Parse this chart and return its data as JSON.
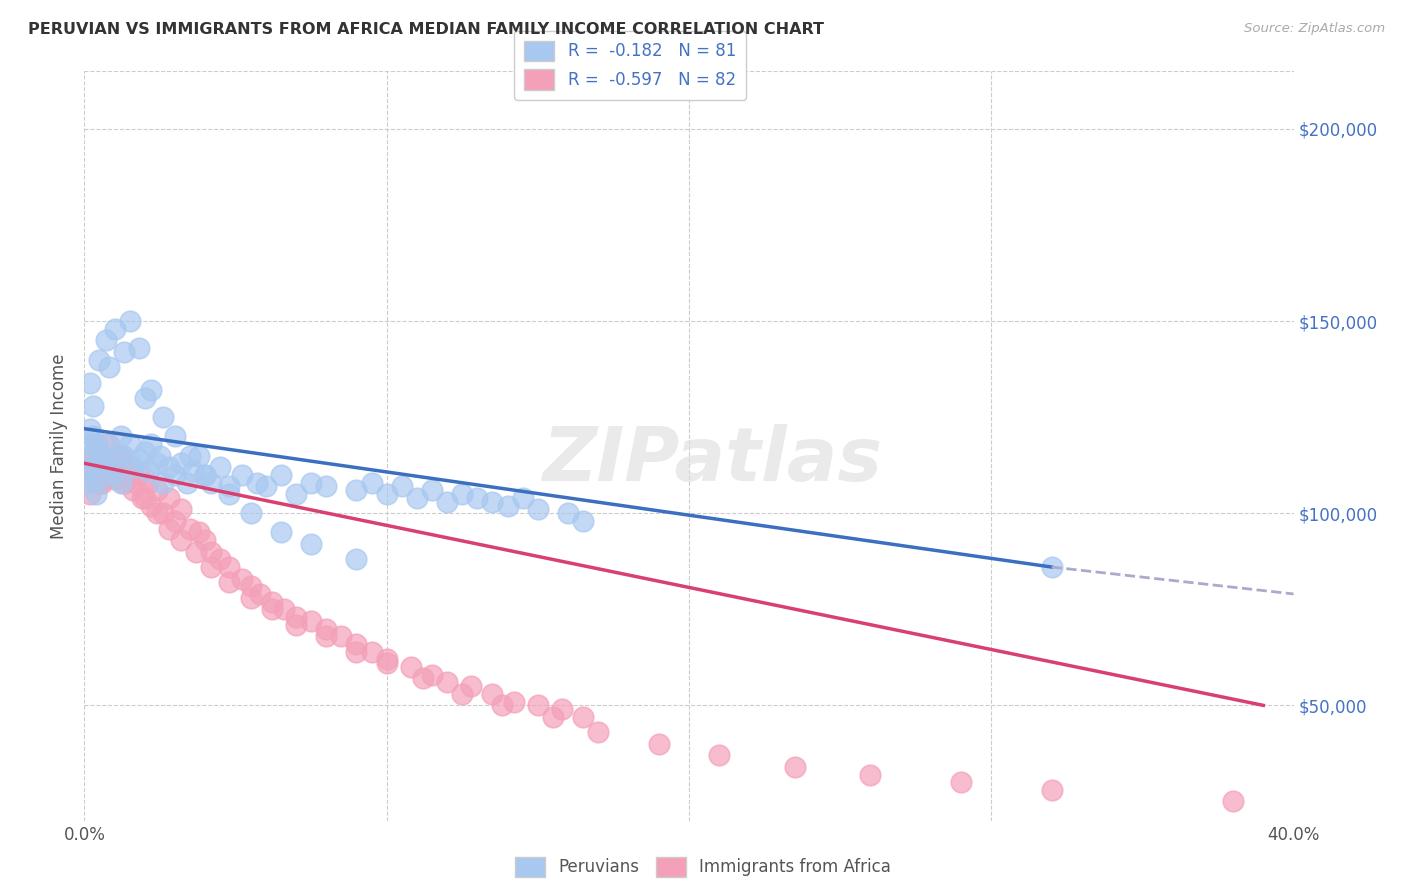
{
  "title": "PERUVIAN VS IMMIGRANTS FROM AFRICA MEDIAN FAMILY INCOME CORRELATION CHART",
  "source": "Source: ZipAtlas.com",
  "ylabel": "Median Family Income",
  "xlim": [
    0.0,
    0.4
  ],
  "ylim": [
    20000,
    215000
  ],
  "legend_R1": "R =  -0.182",
  "legend_N1": "N = 81",
  "legend_R2": "R =  -0.597",
  "legend_N2": "N = 82",
  "color_blue": "#A8C8F0",
  "color_pink": "#F4A0B8",
  "color_blue_line": "#3B6FBF",
  "color_pink_line": "#D94070",
  "color_blue_dark": "#4472C4",
  "watermark": "ZIPatlas",
  "blue_line_x0": 0.0,
  "blue_line_y0": 122000,
  "blue_line_x1": 0.32,
  "blue_line_y1": 86000,
  "blue_line_dash_x0": 0.32,
  "blue_line_dash_y0": 86000,
  "blue_line_dash_x1": 0.4,
  "blue_line_dash_y1": 79000,
  "pink_line_x0": 0.0,
  "pink_line_y0": 113000,
  "pink_line_x1": 0.39,
  "pink_line_y1": 50000,
  "peruvian_x": [
    0.001,
    0.001,
    0.002,
    0.002,
    0.002,
    0.003,
    0.003,
    0.004,
    0.004,
    0.005,
    0.005,
    0.006,
    0.007,
    0.008,
    0.009,
    0.01,
    0.012,
    0.012,
    0.013,
    0.015,
    0.016,
    0.018,
    0.02,
    0.021,
    0.022,
    0.024,
    0.025,
    0.026,
    0.028,
    0.03,
    0.032,
    0.034,
    0.036,
    0.038,
    0.04,
    0.042,
    0.045,
    0.048,
    0.052,
    0.057,
    0.06,
    0.065,
    0.07,
    0.075,
    0.08,
    0.09,
    0.095,
    0.1,
    0.105,
    0.11,
    0.115,
    0.12,
    0.125,
    0.13,
    0.135,
    0.14,
    0.145,
    0.15,
    0.16,
    0.165,
    0.002,
    0.003,
    0.005,
    0.007,
    0.008,
    0.01,
    0.013,
    0.015,
    0.018,
    0.02,
    0.022,
    0.026,
    0.03,
    0.035,
    0.04,
    0.048,
    0.055,
    0.065,
    0.075,
    0.09,
    0.32
  ],
  "peruvian_y": [
    118000,
    110000,
    122000,
    115000,
    108000,
    120000,
    112000,
    118000,
    105000,
    116000,
    109000,
    114000,
    118000,
    112000,
    110000,
    115000,
    120000,
    108000,
    115000,
    118000,
    112000,
    114000,
    116000,
    111000,
    118000,
    113000,
    115000,
    108000,
    112000,
    110000,
    113000,
    108000,
    111000,
    115000,
    110000,
    108000,
    112000,
    107000,
    110000,
    108000,
    107000,
    110000,
    105000,
    108000,
    107000,
    106000,
    108000,
    105000,
    107000,
    104000,
    106000,
    103000,
    105000,
    104000,
    103000,
    102000,
    104000,
    101000,
    100000,
    98000,
    134000,
    128000,
    140000,
    145000,
    138000,
    148000,
    142000,
    150000,
    143000,
    130000,
    132000,
    125000,
    120000,
    115000,
    110000,
    105000,
    100000,
    95000,
    92000,
    88000,
    86000
  ],
  "africa_x": [
    0.001,
    0.002,
    0.003,
    0.004,
    0.005,
    0.006,
    0.007,
    0.008,
    0.009,
    0.01,
    0.012,
    0.013,
    0.015,
    0.016,
    0.018,
    0.019,
    0.021,
    0.022,
    0.024,
    0.026,
    0.028,
    0.03,
    0.032,
    0.035,
    0.038,
    0.04,
    0.042,
    0.045,
    0.048,
    0.052,
    0.055,
    0.058,
    0.062,
    0.066,
    0.07,
    0.075,
    0.08,
    0.085,
    0.09,
    0.095,
    0.1,
    0.108,
    0.115,
    0.12,
    0.128,
    0.135,
    0.142,
    0.15,
    0.158,
    0.165,
    0.002,
    0.004,
    0.006,
    0.008,
    0.011,
    0.014,
    0.017,
    0.02,
    0.024,
    0.028,
    0.032,
    0.037,
    0.042,
    0.048,
    0.055,
    0.062,
    0.07,
    0.08,
    0.09,
    0.1,
    0.112,
    0.125,
    0.138,
    0.155,
    0.17,
    0.19,
    0.21,
    0.235,
    0.26,
    0.29,
    0.32,
    0.38
  ],
  "africa_y": [
    112000,
    115000,
    110000,
    118000,
    108000,
    114000,
    112000,
    110000,
    113000,
    109000,
    115000,
    108000,
    112000,
    106000,
    110000,
    104000,
    108000,
    102000,
    106000,
    100000,
    104000,
    98000,
    101000,
    96000,
    95000,
    93000,
    90000,
    88000,
    86000,
    83000,
    81000,
    79000,
    77000,
    75000,
    73000,
    72000,
    70000,
    68000,
    66000,
    64000,
    62000,
    60000,
    58000,
    56000,
    55000,
    53000,
    51000,
    50000,
    49000,
    47000,
    105000,
    112000,
    108000,
    118000,
    115000,
    110000,
    108000,
    104000,
    100000,
    96000,
    93000,
    90000,
    86000,
    82000,
    78000,
    75000,
    71000,
    68000,
    64000,
    61000,
    57000,
    53000,
    50000,
    47000,
    43000,
    40000,
    37000,
    34000,
    32000,
    30000,
    28000,
    25000
  ]
}
